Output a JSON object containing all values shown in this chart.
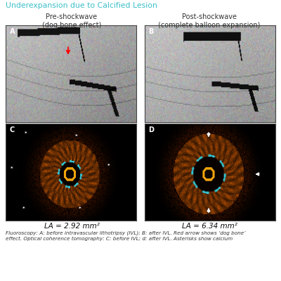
{
  "title_line2": "Underexpansion due to Calcified Lesion",
  "title_color": "#3bbfc9",
  "title_fontsize": 7.8,
  "background_color": "#ffffff",
  "label_A": "A",
  "label_B": "B",
  "label_C": "C",
  "label_D": "D",
  "pre_title": "Pre-shockwave\n(dog bone effect)",
  "post_title": "Post-shockwave\n(complete balloon expansion)",
  "la_left": "LA = 2.92 mm²",
  "la_right": "LA = 6.34 mm²",
  "caption": "Fluoroscopy: A: before intravascular lithotripsy (IVL); B: after IVL. Red arrow shows ‘dog bone’\neffect. Optical coherence tomography: C: before IVL; d: after IVL. Asterisks show calcium",
  "teal_line_color": "#3bbfc9",
  "panel_border_color": "#444444",
  "label_fontsize": 7,
  "caption_fontsize": 5.2,
  "la_fontsize": 7.5,
  "pre_post_fontsize": 7.0
}
